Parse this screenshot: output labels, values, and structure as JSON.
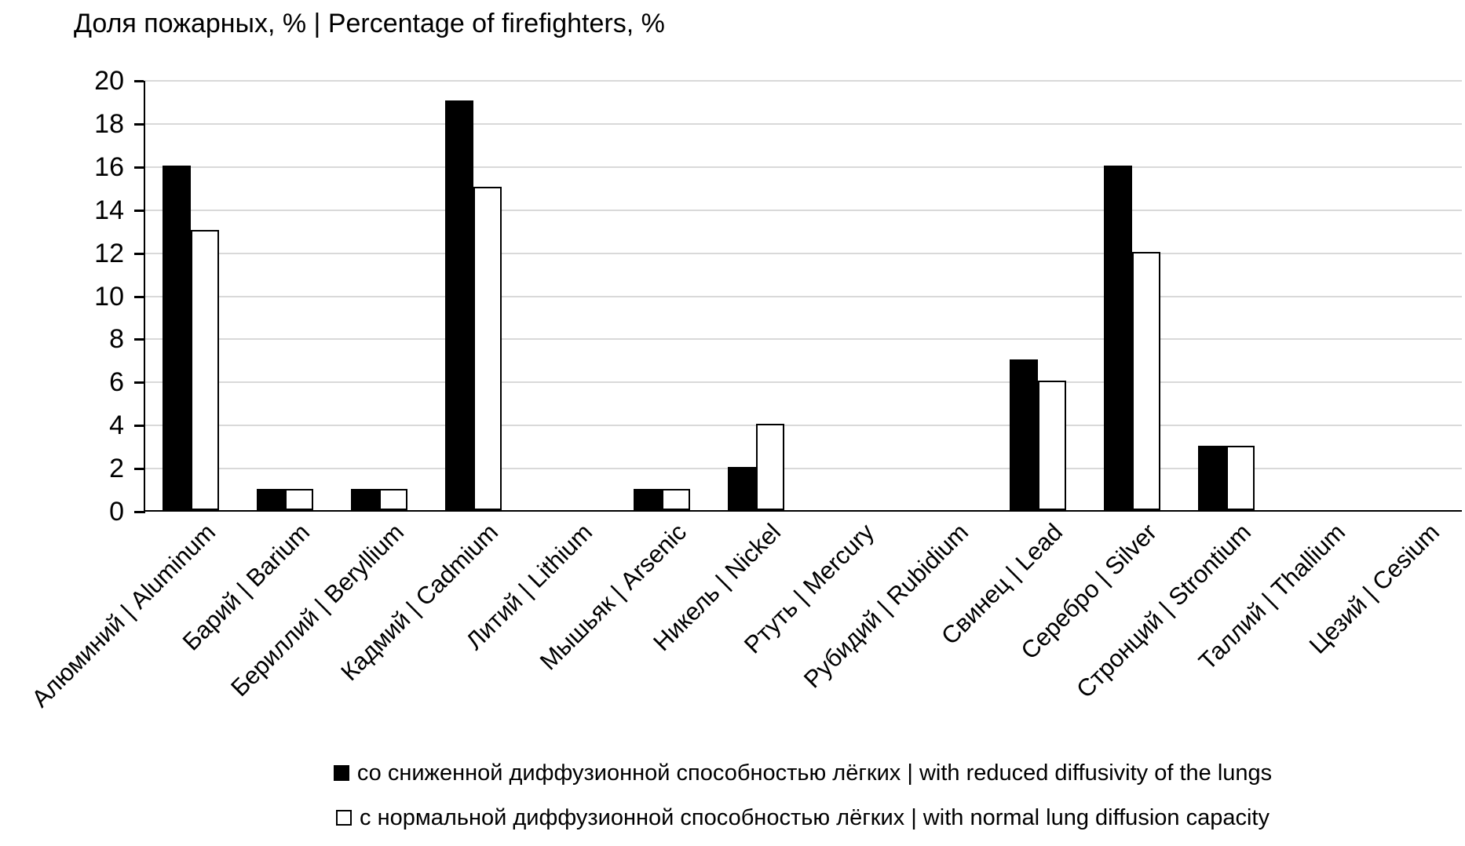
{
  "title": "Доля пожарных, % | Percentage of firefighters, %",
  "chart_data": {
    "type": "bar",
    "title": "Доля пожарных, % | Percentage of firefighters, %",
    "ylabel": "Доля пожарных, % | Percentage of firefighters, %",
    "xlabel": "",
    "ylim": [
      0,
      20
    ],
    "ytick_step": 2,
    "ytick_labels": [
      "0",
      "2",
      "4",
      "6",
      "8",
      "10",
      "12",
      "14",
      "16",
      "18",
      "20"
    ],
    "grid": true,
    "legend_position": "bottom",
    "categories": [
      "Алюминий | Aluminum",
      "Барий | Barium",
      "Бериллий | Beryllium",
      "Кадмий | Cadmium",
      "Литий | Lithium",
      "Мышьяк | Arsenic",
      "Никель | Nickel",
      "Ртуть | Mercury",
      "Рубидий | Rubidium",
      "Свинец | Lead",
      "Серебро | Silver",
      "Стронций | Strontium",
      "Таллий | Thallium",
      "Цезий | Cesium"
    ],
    "series": [
      {
        "name": "со сниженной диффузионной способностью лёгких | with reduced diffusivity of the lungs",
        "style": "solid-black",
        "color": "#000000",
        "values": [
          16,
          1,
          1,
          19,
          0,
          1,
          2,
          0,
          0,
          7,
          16,
          3,
          0,
          0
        ]
      },
      {
        "name": "с нормальной диффузионной способностью лёгких | with normal lung diffusion capacity",
        "style": "white-outlined",
        "color": "#ffffff",
        "border_color": "#000000",
        "values": [
          13,
          1,
          1,
          15,
          0,
          1,
          4,
          0,
          0,
          6,
          12,
          3,
          0,
          0
        ]
      }
    ],
    "colors": {
      "gridline": "#d9d9d9",
      "axis": "#000000",
      "text": "#000000",
      "background": "#ffffff"
    }
  }
}
